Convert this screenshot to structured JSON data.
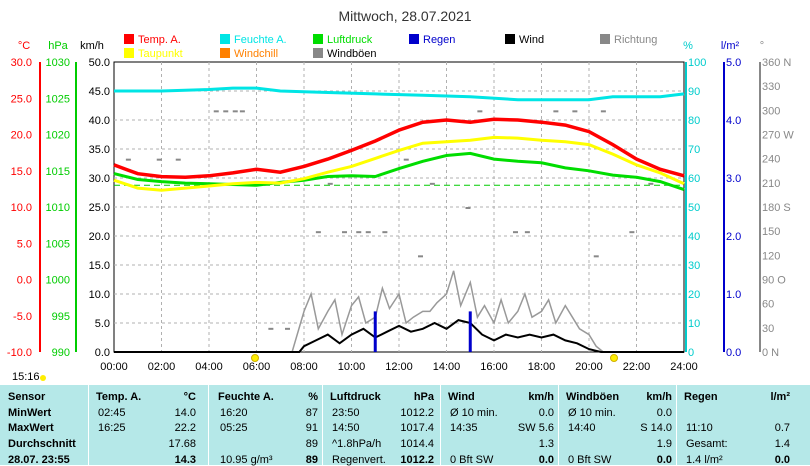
{
  "chart_data": {
    "type": "line",
    "title": "Mittwoch, 28.07.2021",
    "x": [
      "00:00",
      "02:00",
      "04:00",
      "06:00",
      "08:00",
      "10:00",
      "12:00",
      "14:00",
      "16:00",
      "18:00",
      "20:00",
      "22:00",
      "24:00"
    ],
    "axes": {
      "temp": {
        "unit": "°C",
        "ticks": [
          "30.0",
          "25.0",
          "20.0",
          "15.0",
          "10.0",
          "5.0",
          "0.0",
          "-5.0",
          "-10.0"
        ],
        "ylim": [
          -10,
          30
        ],
        "color": "#ff0000"
      },
      "pressure": {
        "unit": "hPa",
        "ticks": [
          "1030",
          "1025",
          "1020",
          "1015",
          "1010",
          "1005",
          "1000",
          "995",
          "990"
        ],
        "ylim": [
          990,
          1030
        ],
        "color": "#00cc00"
      },
      "wind": {
        "unit": "km/h",
        "ticks": [
          "50.0",
          "45.0",
          "40.0",
          "35.0",
          "30.0",
          "25.0",
          "20.0",
          "15.0",
          "10.0",
          "5.0",
          "0.0"
        ],
        "ylim": [
          0,
          50
        ],
        "color": "#000000"
      },
      "humidity": {
        "unit": "%",
        "ticks": [
          "100",
          "90",
          "80",
          "70",
          "60",
          "50",
          "40",
          "30",
          "20",
          "10",
          "0"
        ],
        "ylim": [
          0,
          100
        ],
        "color": "#00cccc"
      },
      "rain": {
        "unit": "l/m²",
        "ticks": [
          "5.0",
          "4.0",
          "3.0",
          "2.0",
          "1.0",
          "0.0"
        ],
        "ylim": [
          0,
          5
        ],
        "color": "#0000cc"
      },
      "direction": {
        "unit": "°",
        "ticks": [
          "360 N",
          "330",
          "300",
          "270 W",
          "240",
          "210",
          "180 S",
          "150",
          "120",
          "90 O",
          "60",
          "30",
          "0 N"
        ],
        "ylim": [
          0,
          360
        ],
        "color": "#888888"
      }
    },
    "legend": [
      {
        "name": "Temp. A.",
        "color": "#ff0000"
      },
      {
        "name": "Feuchte A.",
        "color": "#00e5e5"
      },
      {
        "name": "Luftdruck",
        "color": "#00dd00"
      },
      {
        "name": "Regen",
        "color": "#0000cc"
      },
      {
        "name": "Wind",
        "color": "#000000"
      },
      {
        "name": "Richtung",
        "color": "#888888"
      },
      {
        "name": "Taupunkt",
        "color": "#ffff00"
      },
      {
        "name": "Windchill",
        "color": "#ff8000"
      },
      {
        "name": "Windböen",
        "color": "#888888"
      }
    ],
    "series": [
      {
        "name": "Temp. A.",
        "unit": "°C",
        "color": "#ff0000",
        "points": [
          [
            0,
            15.8
          ],
          [
            1,
            14.6
          ],
          [
            2,
            14.2
          ],
          [
            3,
            14.1
          ],
          [
            4,
            14.3
          ],
          [
            5,
            14.7
          ],
          [
            6,
            15.2
          ],
          [
            7,
            14.8
          ],
          [
            8,
            15.6
          ],
          [
            9,
            16.6
          ],
          [
            10,
            17.8
          ],
          [
            11,
            19.1
          ],
          [
            12,
            20.6
          ],
          [
            13,
            21.7
          ],
          [
            14,
            22.0
          ],
          [
            15,
            21.7
          ],
          [
            16,
            22.1
          ],
          [
            17,
            22.0
          ],
          [
            18,
            21.7
          ],
          [
            19,
            21.3
          ],
          [
            20,
            20.4
          ],
          [
            21,
            18.6
          ],
          [
            22,
            16.6
          ],
          [
            23,
            15.2
          ],
          [
            24,
            14.3
          ]
        ]
      },
      {
        "name": "Taupunkt",
        "unit": "°C",
        "color": "#ffff00",
        "points": [
          [
            0,
            13.7
          ],
          [
            1,
            12.6
          ],
          [
            2,
            12.3
          ],
          [
            3,
            12.6
          ],
          [
            4,
            12.9
          ],
          [
            5,
            13.2
          ],
          [
            6,
            13.4
          ],
          [
            7,
            13.3
          ],
          [
            8,
            13.9
          ],
          [
            9,
            14.8
          ],
          [
            10,
            15.6
          ],
          [
            11,
            16.7
          ],
          [
            12,
            17.8
          ],
          [
            13,
            18.8
          ],
          [
            14,
            19.0
          ],
          [
            15,
            19.2
          ],
          [
            16,
            19.6
          ],
          [
            17,
            19.5
          ],
          [
            18,
            19.2
          ],
          [
            19,
            19.0
          ],
          [
            20,
            18.6
          ],
          [
            21,
            17.3
          ],
          [
            22,
            15.8
          ],
          [
            23,
            14.7
          ],
          [
            24,
            13.2
          ]
        ]
      },
      {
        "name": "Luftdruck",
        "unit": "hPa",
        "color": "#00dd00",
        "points": [
          [
            0,
            1014.6
          ],
          [
            1,
            1013.8
          ],
          [
            2,
            1013.5
          ],
          [
            3,
            1013.3
          ],
          [
            4,
            1013.2
          ],
          [
            5,
            1013.1
          ],
          [
            6,
            1013.0
          ],
          [
            7,
            1013.4
          ],
          [
            8,
            1013.7
          ],
          [
            9,
            1014.2
          ],
          [
            10,
            1014.3
          ],
          [
            11,
            1014.2
          ],
          [
            12,
            1015.3
          ],
          [
            13,
            1016.3
          ],
          [
            14,
            1017.1
          ],
          [
            15,
            1017.4
          ],
          [
            16,
            1016.6
          ],
          [
            17,
            1016.3
          ],
          [
            18,
            1016.1
          ],
          [
            19,
            1015.4
          ],
          [
            20,
            1015.0
          ],
          [
            21,
            1014.4
          ],
          [
            22,
            1014.1
          ],
          [
            23,
            1013.5
          ],
          [
            24,
            1012.4
          ]
        ]
      },
      {
        "name": "Feuchte A.",
        "unit": "%",
        "color": "#00e5e5",
        "points": [
          [
            0,
            90
          ],
          [
            2,
            90
          ],
          [
            4,
            90.5
          ],
          [
            5,
            91
          ],
          [
            6,
            91
          ],
          [
            7,
            90
          ],
          [
            9,
            89.5
          ],
          [
            11,
            89
          ],
          [
            13,
            88.5
          ],
          [
            15,
            88
          ],
          [
            17,
            87
          ],
          [
            19,
            87
          ],
          [
            20,
            87
          ],
          [
            21,
            88
          ],
          [
            22,
            88
          ],
          [
            23,
            88
          ],
          [
            24,
            89
          ]
        ]
      },
      {
        "name": "Wind",
        "unit": "km/h",
        "color": "#000000",
        "points": [
          [
            0,
            0
          ],
          [
            7.8,
            0
          ],
          [
            8,
            1
          ],
          [
            8.5,
            2
          ],
          [
            9,
            3
          ],
          [
            9.5,
            1.5
          ],
          [
            10,
            3
          ],
          [
            10.5,
            4
          ],
          [
            11,
            2.5
          ],
          [
            11.5,
            3.5
          ],
          [
            12,
            4.5
          ],
          [
            12.5,
            3.5
          ],
          [
            13,
            4
          ],
          [
            13.5,
            5
          ],
          [
            14,
            4
          ],
          [
            14.5,
            5.5
          ],
          [
            15,
            5
          ],
          [
            15.5,
            3
          ],
          [
            16,
            2
          ],
          [
            16.5,
            3
          ],
          [
            17,
            2.5
          ],
          [
            17.5,
            3
          ],
          [
            18,
            2.5
          ],
          [
            18.5,
            3
          ],
          [
            19,
            2
          ],
          [
            19.5,
            1.5
          ],
          [
            20,
            0.5
          ],
          [
            20.5,
            0
          ],
          [
            24,
            0
          ]
        ]
      },
      {
        "name": "Windböen",
        "unit": "km/h",
        "color": "#888888",
        "points": [
          [
            0,
            0
          ],
          [
            7.5,
            0
          ],
          [
            8,
            7
          ],
          [
            8.3,
            10
          ],
          [
            8.6,
            4
          ],
          [
            9,
            7
          ],
          [
            9.3,
            9
          ],
          [
            9.6,
            3
          ],
          [
            10,
            8
          ],
          [
            10.3,
            9.5
          ],
          [
            10.6,
            5
          ],
          [
            11,
            6
          ],
          [
            11.3,
            11
          ],
          [
            11.6,
            7.5
          ],
          [
            12,
            10
          ],
          [
            12.3,
            5
          ],
          [
            12.6,
            6
          ],
          [
            13,
            7
          ],
          [
            13.3,
            7
          ],
          [
            13.6,
            8.5
          ],
          [
            14,
            10
          ],
          [
            14.3,
            14
          ],
          [
            14.6,
            8
          ],
          [
            15,
            12
          ],
          [
            15.3,
            6
          ],
          [
            15.6,
            8
          ],
          [
            16,
            5
          ],
          [
            16.3,
            9
          ],
          [
            16.6,
            5
          ],
          [
            17,
            7
          ],
          [
            17.3,
            10
          ],
          [
            17.6,
            6
          ],
          [
            18,
            7
          ],
          [
            18.3,
            9
          ],
          [
            18.6,
            5
          ],
          [
            19,
            8
          ],
          [
            19.3,
            6
          ],
          [
            19.6,
            4
          ],
          [
            20,
            3
          ],
          [
            20.3,
            1
          ],
          [
            20.6,
            0
          ],
          [
            24,
            0
          ]
        ]
      },
      {
        "name": "Regen",
        "unit": "l/m²",
        "color": "#0000cc",
        "points": [
          [
            11,
            0.7
          ],
          [
            15,
            0.7
          ]
        ]
      }
    ]
  },
  "statusbar": {
    "time_now": "15:16",
    "time_markers": [
      "05:54",
      "21:00"
    ]
  },
  "stats": {
    "row_labels": [
      "Sensor",
      "MinWert",
      "MaxWert",
      "Durchschnitt",
      "28.07. 23:55"
    ],
    "columns": [
      {
        "name": "Temp. A.",
        "unit": "°C",
        "cells": [
          [
            "02:45",
            "14.0"
          ],
          [
            "16:25",
            "22.2"
          ],
          [
            "",
            "17.68"
          ],
          [
            "",
            "14.3"
          ]
        ]
      },
      {
        "name": "Feuchte A.",
        "unit": "%",
        "cells": [
          [
            "16:20",
            "87"
          ],
          [
            "05:25",
            "91"
          ],
          [
            "",
            "89"
          ],
          [
            "10.95 g/m³",
            "89"
          ]
        ]
      },
      {
        "name": "Luftdruck",
        "unit": "hPa",
        "cells": [
          [
            "23:50",
            "1012.2"
          ],
          [
            "14:50",
            "1017.4"
          ],
          [
            "^1.8hPa/h",
            "1014.4"
          ],
          [
            "Regenvert.",
            "1012.2"
          ]
        ]
      },
      {
        "name": "Wind",
        "unit": "km/h",
        "cells": [
          [
            "Ø 10 min.",
            "0.0"
          ],
          [
            "14:35",
            "SW 5.6"
          ],
          [
            "",
            "1.3"
          ],
          [
            "0 Bft SW",
            "0.0"
          ]
        ]
      },
      {
        "name": "Windböen",
        "unit": "km/h",
        "cells": [
          [
            "Ø 10 min.",
            "0.0"
          ],
          [
            "14:40",
            "S 14.0"
          ],
          [
            "",
            "1.9"
          ],
          [
            "0 Bft SW",
            "0.0"
          ]
        ]
      },
      {
        "name": "Regen",
        "unit": "l/m²",
        "cells": [
          [
            "",
            ""
          ],
          [
            "11:10",
            "0.7"
          ],
          [
            "Gesamt:",
            "1.4"
          ],
          [
            "1.4 l/m²",
            "0.0"
          ]
        ]
      }
    ]
  }
}
